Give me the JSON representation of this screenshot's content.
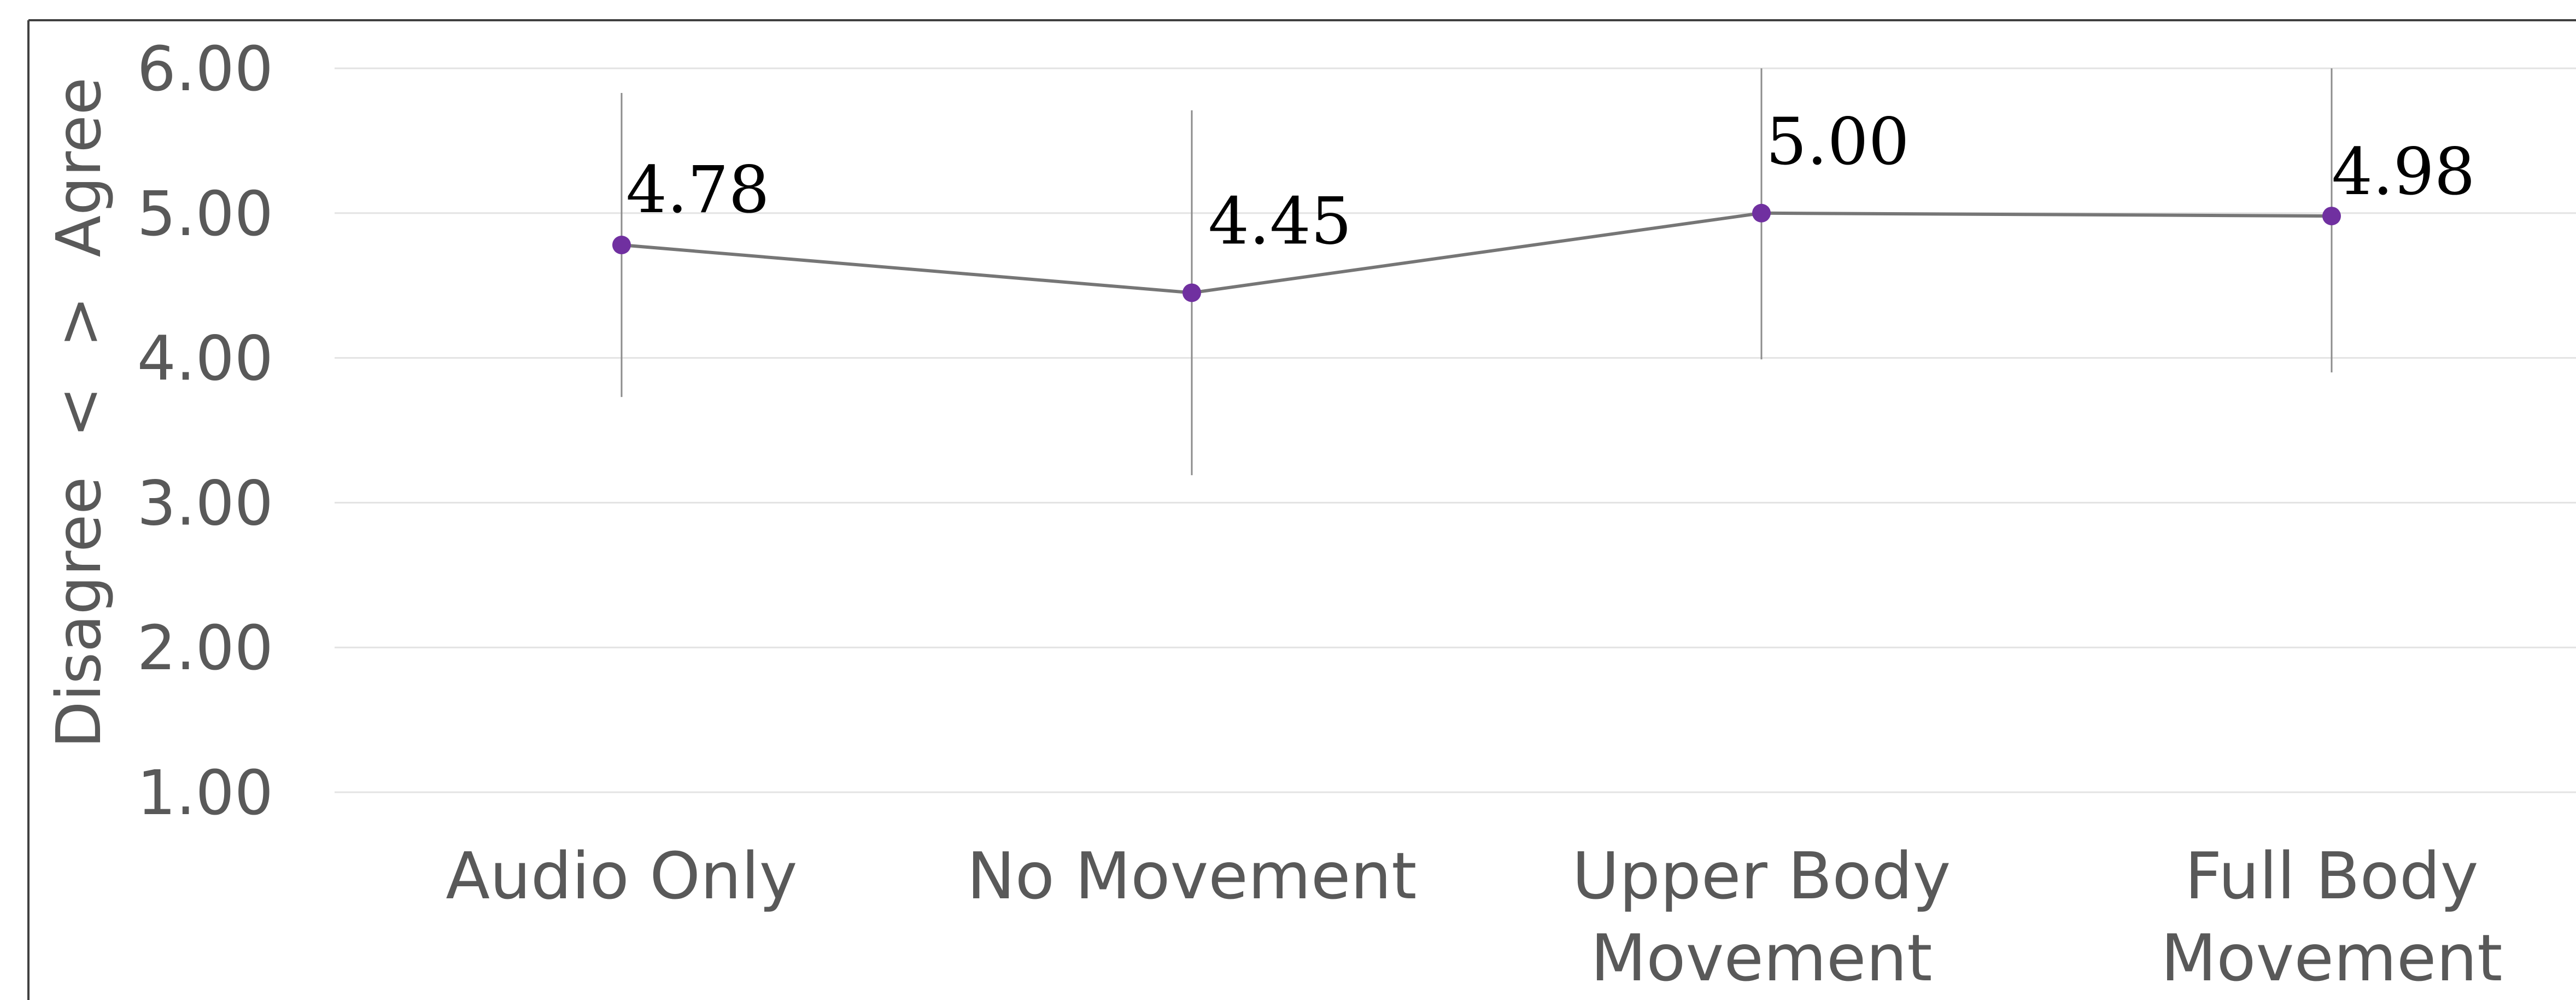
{
  "chart_data": {
    "type": "line",
    "categories": [
      "Audio Only",
      "No Movement",
      "Upper Body Movement",
      "Full Body Movement"
    ],
    "category_lines": [
      [
        "Audio Only"
      ],
      [
        "No Movement"
      ],
      [
        "Upper Body",
        "Movement"
      ],
      [
        "Full Body",
        "Movement"
      ]
    ],
    "series": [
      {
        "values": [
          4.78,
          4.45,
          5.0,
          4.98
        ],
        "labels": [
          "4.78",
          "4.45",
          "5.00",
          "4.98"
        ],
        "error_low": [
          3.73,
          3.19,
          3.99,
          3.9
        ],
        "error_high": [
          5.83,
          5.71,
          6.0,
          6.0
        ],
        "color": "#7030A0"
      }
    ],
    "yticks": [
      "1.00",
      "2.00",
      "3.00",
      "4.00",
      "5.00",
      "6.00"
    ],
    "ylim": [
      1,
      6
    ],
    "ylabel": "Disagree  <  >  Agree",
    "xlabel": "",
    "grid": true,
    "colors": {
      "line": "#767676",
      "marker": "#7030A0",
      "grid": "#E3E3E3",
      "errorbar": "#8C8C8C",
      "border": "#404040"
    }
  }
}
